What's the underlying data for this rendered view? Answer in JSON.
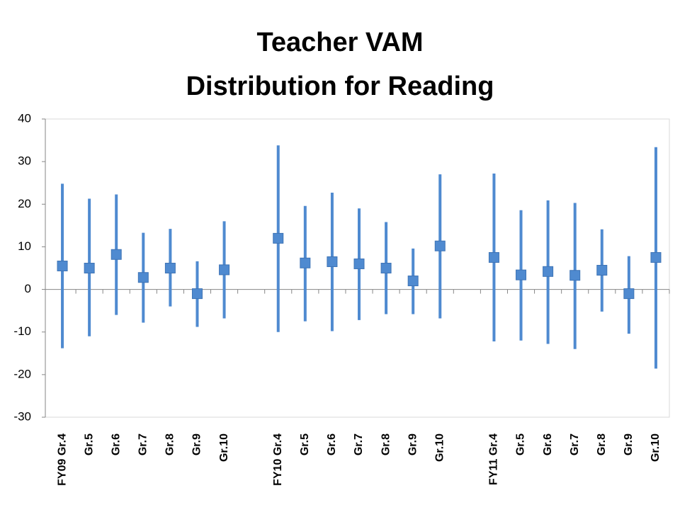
{
  "chart_data": {
    "type": "range",
    "title": [
      "Teacher VAM",
      "Distribution for Reading"
    ],
    "categories": [
      "FY09 Gr.4",
      "Gr.5",
      "Gr.6",
      "Gr.7",
      "Gr.8",
      "Gr.9",
      "Gr.10",
      null,
      "FY10 Gr.4",
      "Gr.5",
      "Gr.6",
      "Gr.7",
      "Gr.8",
      "Gr.9",
      "Gr.10",
      null,
      "FY11 Gr.4",
      "Gr.5",
      "Gr.6",
      "Gr.7",
      "Gr.8",
      "Gr.9",
      "Gr.10"
    ],
    "values": [
      5.5,
      5,
      8.2,
      2.8,
      5,
      -1,
      4.6,
      null,
      12,
      6.2,
      6.5,
      6,
      5,
      2,
      10.2,
      null,
      7.5,
      3.4,
      4.2,
      3.3,
      4.5,
      -1,
      7.5
    ],
    "highs": [
      24.8,
      21.3,
      22.3,
      13.3,
      14.2,
      6.6,
      16,
      null,
      33.8,
      19.6,
      22.7,
      19,
      15.8,
      9.6,
      27,
      null,
      27.2,
      18.6,
      20.9,
      20.3,
      14.1,
      7.8,
      33.4
    ],
    "lows": [
      -13.8,
      -11,
      -6,
      -7.8,
      -4,
      -8.8,
      -6.8,
      null,
      -10,
      -7.5,
      -9.8,
      -7.2,
      -5.8,
      -5.8,
      -6.8,
      null,
      -12.2,
      -12,
      -12.8,
      -14,
      -5.2,
      -10.4,
      -18.6
    ],
    "color": "#4f8ad0",
    "ylim": [
      -30,
      40
    ],
    "yticks": [
      -30,
      -20,
      -10,
      0,
      10,
      20,
      30,
      40
    ]
  }
}
